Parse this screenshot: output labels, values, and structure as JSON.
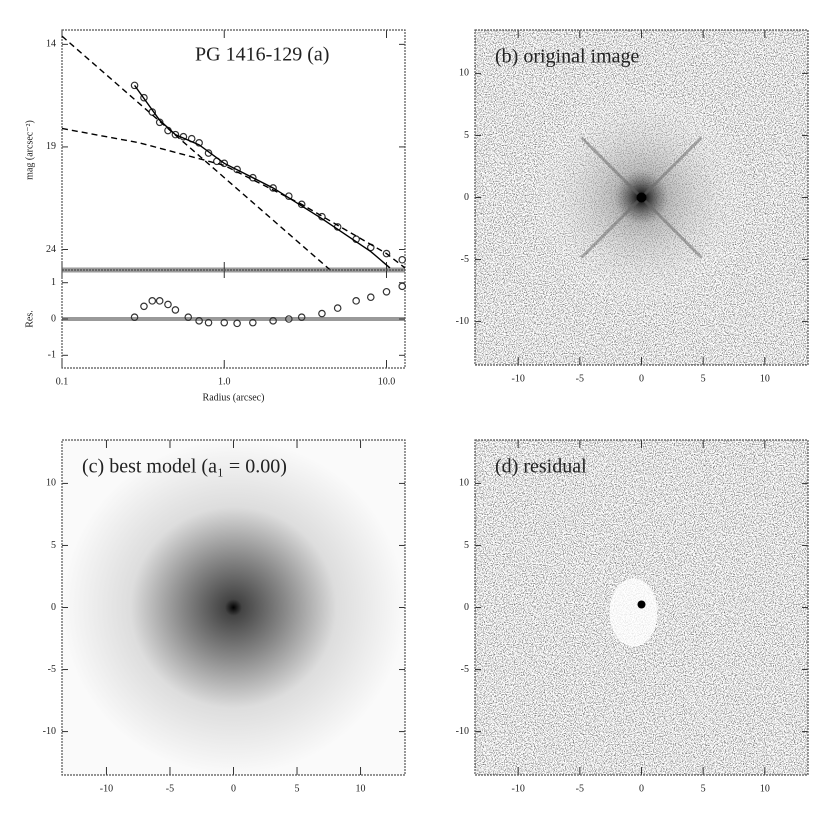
{
  "chart_data": [
    {
      "type": "profile",
      "title": "PG 1416-129 (a)",
      "ylabel": "mag (arcsec⁻²)",
      "log_x": true,
      "xlim": [
        0.1,
        13
      ],
      "xticks": [
        0.1,
        {
          "value": 1,
          "label": "1.0"
        },
        {
          "value": 10,
          "label": "10.0"
        }
      ],
      "ylim": [
        25.0,
        13.3
      ],
      "yticks": [
        14,
        19,
        24
      ],
      "series": [
        {
          "style": "markers",
          "color": "#333333",
          "x": [
            0.28,
            0.32,
            0.36,
            0.4,
            0.45,
            0.5,
            0.56,
            0.63,
            0.7,
            0.8,
            0.9,
            1.0,
            1.2,
            1.5,
            2.0,
            2.5,
            3.0,
            4.0,
            5.0,
            6.5,
            8.0,
            10,
            12.5
          ],
          "values": [
            16.0,
            16.6,
            17.3,
            17.8,
            18.2,
            18.4,
            18.5,
            18.6,
            18.8,
            19.3,
            19.7,
            19.8,
            20.1,
            20.5,
            21.0,
            21.4,
            21.8,
            22.4,
            22.9,
            23.5,
            23.9,
            24.2,
            24.5
          ]
        },
        {
          "style": "solid",
          "color": "#000000",
          "x": [
            0.28,
            0.4,
            0.5,
            0.7,
            1,
            2,
            4,
            8,
            10.5
          ],
          "values": [
            16.0,
            17.7,
            18.4,
            18.9,
            19.8,
            21.0,
            22.5,
            24.1,
            24.9
          ]
        },
        {
          "style": "dashed",
          "color": "#000000",
          "x": [
            0.1,
            4.5
          ],
          "values": [
            13.6,
            25.0
          ]
        },
        {
          "style": "dashed",
          "color": "#000000",
          "x": [
            0.1,
            0.3,
            1,
            3,
            10,
            13
          ],
          "values": [
            18.1,
            18.8,
            19.9,
            21.8,
            24.2,
            24.9
          ]
        }
      ]
    },
    {
      "type": "residual",
      "xlabel": "Radius (arcsec)",
      "ylabel": "Res.",
      "log_x": true,
      "xlim": [
        0.1,
        13
      ],
      "xticks": [
        0.1,
        {
          "value": 1,
          "label": "1.0"
        },
        {
          "value": 10,
          "label": "10.0"
        }
      ],
      "ylim": [
        -1.35,
        1.35
      ],
      "yticks": [
        1,
        0,
        -1
      ],
      "series": [
        {
          "style": "markers",
          "color": "#333333",
          "x": [
            0.28,
            0.32,
            0.36,
            0.4,
            0.45,
            0.5,
            0.6,
            0.7,
            0.8,
            1.0,
            1.2,
            1.5,
            2.0,
            2.5,
            3.0,
            4.0,
            5.0,
            6.5,
            8.0,
            10,
            12.5
          ],
          "values": [
            0.05,
            0.35,
            0.5,
            0.5,
            0.4,
            0.25,
            0.05,
            -0.05,
            -0.1,
            -0.1,
            -0.12,
            -0.1,
            -0.05,
            0.0,
            0.05,
            0.15,
            0.3,
            0.5,
            0.6,
            0.75,
            0.9
          ]
        }
      ]
    },
    {
      "type": "image",
      "kind": "original",
      "title": "(b) original image",
      "xlim": [
        -13.5,
        13.5
      ],
      "ylim": [
        -13.5,
        13.5
      ],
      "xticks": [
        -10,
        -5,
        0,
        5,
        10
      ],
      "yticks": [
        -10,
        -5,
        0,
        5,
        10
      ]
    },
    {
      "type": "image",
      "kind": "model",
      "title": "(c) best model (a₁ = 0.00)",
      "xlim": [
        -13.5,
        13.5
      ],
      "ylim": [
        -13.5,
        13.5
      ],
      "xticks": [
        -10,
        -5,
        0,
        5,
        10
      ],
      "yticks": [
        -10,
        -5,
        0,
        5,
        10
      ]
    },
    {
      "type": "image",
      "kind": "residual",
      "title": "(d) residual",
      "xlim": [
        -13.5,
        13.5
      ],
      "ylim": [
        -13.5,
        13.5
      ],
      "xticks": [
        -10,
        -5,
        0,
        5,
        10
      ],
      "yticks": [
        -10,
        -5,
        0,
        5,
        10
      ]
    }
  ]
}
